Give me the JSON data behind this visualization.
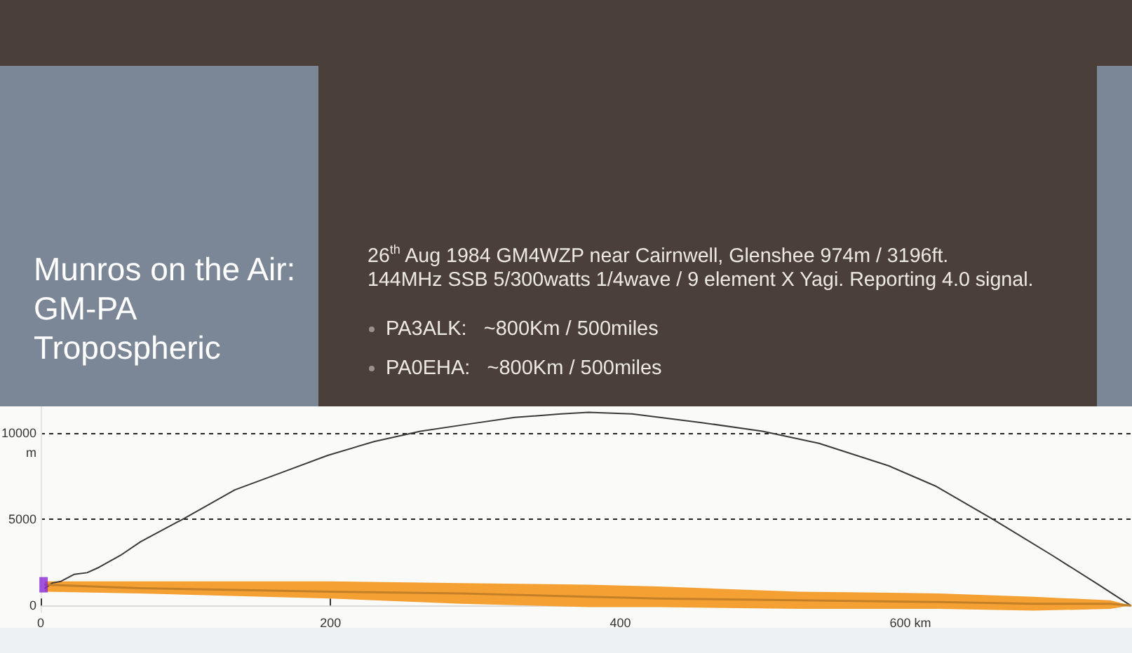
{
  "chart_data": {
    "type": "line",
    "title": "Munros on the Air: GM-PA Tropospheric",
    "subtitle": "26$^{th}$ Aug 1984 GM4WZP near Cairnwell, Glenshee 974m / 3196ft.\n144MHz SSB 5/300watts 1/4wave / 9 element X Yagi. Reporting 4.0 signal.",
    "annotations": [
      "PA3ALK:   ~800Km / 500miles",
      "PA0EHA:   ~800Km / 500miles"
    ],
    "ylabel": "m",
    "xlim": [
      0,
      752
    ],
    "xticks": [
      0,
      200,
      400,
      {
        "value": 600,
        "label": "600 km"
      }
    ],
    "ylim": [
      -400,
      11500
    ],
    "yticks": [
      0,
      5000,
      10000
    ],
    "grid": "y",
    "series": [
      {
        "color": "#3a3a3a",
        "x": [
          3,
          8,
          14,
          23,
          32,
          40,
          55,
          69,
          98,
          134,
          166,
          198,
          230,
          262,
          294,
          327,
          359,
          378,
          408,
          456,
          498,
          537,
          585,
          618,
          657,
          698,
          730,
          752
        ],
        "values": [
          1000,
          1300,
          1400,
          1800,
          1900,
          2200,
          2900,
          3700,
          5000,
          6700,
          7700,
          8700,
          9500,
          10100,
          10500,
          10900,
          11100,
          11200,
          11100,
          10600,
          10100,
          9400,
          8100,
          6900,
          5000,
          2900,
          1200,
          0
        ]
      },
      {
        "color": "#c48029",
        "x": [
          3,
          68,
          200,
          290,
          378,
          426,
          523,
          620,
          685,
          738,
          752
        ],
        "values": [
          1200,
          1000,
          800,
          700,
          500,
          400,
          300,
          200,
          100,
          100,
          0
        ],
        "upper": [
          1400,
          1400,
          1400,
          1300,
          1200,
          1100,
          800,
          700,
          500,
          300,
          0
        ],
        "lower": [
          800,
          700,
          400,
          100,
          -100,
          -100,
          -200,
          -200,
          -300,
          -200,
          0
        ]
      },
      {
        "type": "scatter",
        "marker": "square",
        "color": "#8a2ad6",
        "x": [
          2
        ],
        "values": [
          1200
        ]
      }
    ]
  }
}
